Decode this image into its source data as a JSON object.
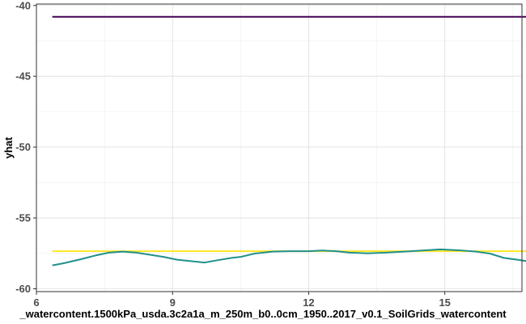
{
  "chart_data": {
    "type": "line",
    "title": "",
    "xlabel": "_watercontent.1500kPa_usda.3c2a1a_m_250m_b0..0cm_1950..2017_v0.1_SoilGrids_watercontent",
    "ylabel": "yhat",
    "xlim": [
      6.0,
      16.7
    ],
    "ylim": [
      -60.2,
      -39.9
    ],
    "x_ticks": [
      6,
      9,
      12,
      15
    ],
    "y_ticks": [
      -60,
      -55,
      -50,
      -45,
      -40
    ],
    "x_tick_labels": [
      "6",
      "9",
      "12",
      "15"
    ],
    "y_tick_labels": [
      "-60",
      "-55",
      "-50",
      "-45",
      "-40"
    ],
    "grid": true,
    "legend": "none",
    "series": [
      {
        "color": "#440154",
        "x": [
          6.35,
          17.1
        ],
        "y": [
          -40.8,
          -40.8
        ]
      },
      {
        "color": "#fde725",
        "x": [
          6.35,
          17.1
        ],
        "y": [
          -57.35,
          -57.35
        ]
      },
      {
        "color": "#21908c",
        "x": [
          6.35,
          6.6,
          7.0,
          7.3,
          7.6,
          7.9,
          8.2,
          8.5,
          8.8,
          9.1,
          9.4,
          9.7,
          10.0,
          10.3,
          10.5,
          10.8,
          11.2,
          11.6,
          12.0,
          12.3,
          12.6,
          12.9,
          13.3,
          13.7,
          14.1,
          14.5,
          14.9,
          15.3,
          15.7,
          16.0,
          16.3,
          16.6,
          16.8,
          17.1
        ],
        "y": [
          -58.35,
          -58.2,
          -57.9,
          -57.65,
          -57.45,
          -57.38,
          -57.45,
          -57.6,
          -57.75,
          -57.95,
          -58.05,
          -58.15,
          -57.98,
          -57.82,
          -57.75,
          -57.52,
          -57.38,
          -57.35,
          -57.35,
          -57.3,
          -57.35,
          -57.45,
          -57.5,
          -57.45,
          -57.38,
          -57.3,
          -57.22,
          -57.28,
          -57.38,
          -57.52,
          -57.82,
          -57.95,
          -58.05,
          -59.7
        ]
      }
    ]
  }
}
